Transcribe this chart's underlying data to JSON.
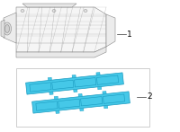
{
  "bg_color": "#ffffff",
  "label1_text": "1",
  "label2_text": "2",
  "gasket_color": "#45c8e8",
  "gasket_edge_color": "#1a9abf",
  "manifold_edge_color": "#888888",
  "manifold_face_color": "#f5f5f5",
  "box_edge_color": "#bbbbbb",
  "label_fontsize": 6.5,
  "line_color": "#333333"
}
